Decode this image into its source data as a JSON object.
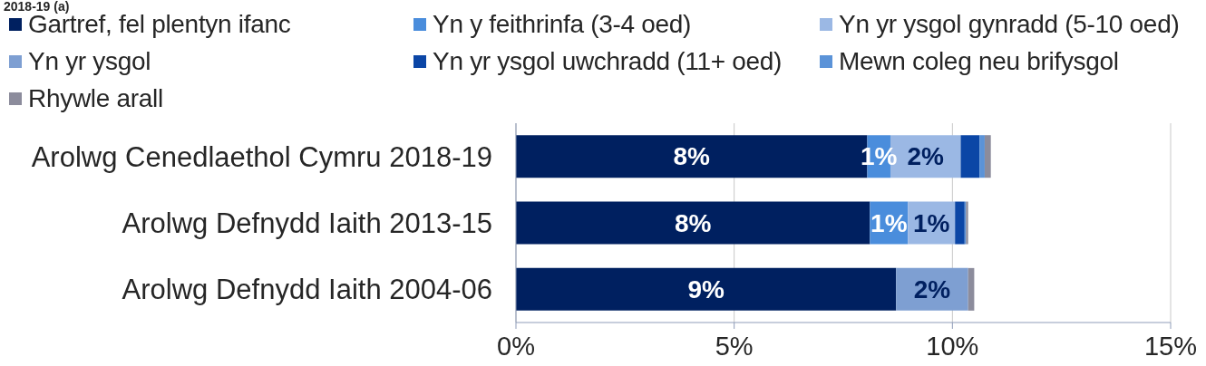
{
  "chart_data": {
    "type": "bar",
    "title": "2018-19 (a)",
    "orientation": "horizontal",
    "stacked": true,
    "categories": [
      "Arolwg Cenedlaethol Cymru 2018-19",
      "Arolwg Defnydd Iaith 2013-15",
      "Arolwg Defnydd Iaith 2004-06"
    ],
    "series": [
      {
        "name": "Gartref, fel plentyn ifanc",
        "color": "#002060",
        "values": [
          8.05,
          8.11,
          8.71
        ],
        "value_labels": [
          "8%",
          "8%",
          "9%"
        ]
      },
      {
        "name": "Yn y feithrinfa (3-4 oed)",
        "color": "#4a8ddc",
        "values": [
          0.53,
          0.87,
          null
        ],
        "value_labels": [
          "1%",
          "1%",
          null
        ]
      },
      {
        "name": "Yn yr ysgol gynradd (5-10 oed)",
        "color": "#9bb8e4",
        "values": [
          1.61,
          1.08,
          null
        ],
        "value_labels": [
          "2%",
          "1%",
          null
        ]
      },
      {
        "name": "Yn yr ysgol",
        "color": "#7e9fd2",
        "values": [
          null,
          null,
          1.65
        ],
        "value_labels": [
          null,
          null,
          "2%"
        ]
      },
      {
        "name": "Yn yr ysgol uwchradd (11+ oed)",
        "color": "#0b46a6",
        "values": [
          0.43,
          0.22,
          null
        ]
      },
      {
        "name": "Mewn coleg neu brifysgol",
        "color": "#5b93d8",
        "values": [
          0.12,
          0.03,
          null
        ]
      },
      {
        "name": "Rhywle arall",
        "color": "#8c8c9c",
        "values": [
          0.14,
          0.05,
          0.14
        ]
      }
    ],
    "xlim": [
      0,
      15
    ],
    "xticks": [
      {
        "value": 0,
        "label": "0%"
      },
      {
        "value": 5,
        "label": "5%"
      },
      {
        "value": 10,
        "label": "10%"
      },
      {
        "value": 15,
        "label": "15%"
      }
    ],
    "grid": "x",
    "legend": "top"
  }
}
